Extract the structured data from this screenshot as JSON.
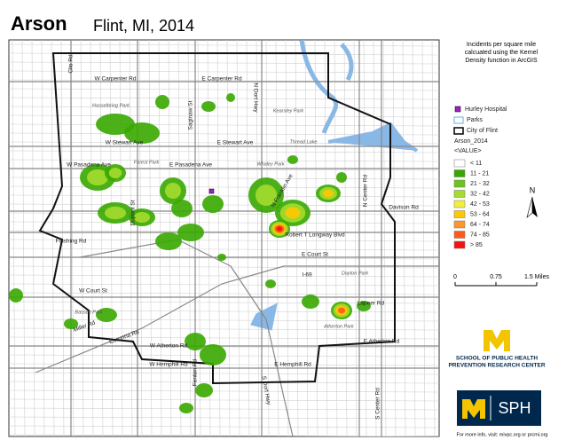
{
  "header": {
    "title": "Arson",
    "subtitle": "Flint, MI, 2014"
  },
  "note": [
    "Incidents per square mile",
    "calcuated using the Kernel",
    "Density function in ArcGIS"
  ],
  "legend": {
    "hospital": "Hurley Hospital",
    "parks": "Parks",
    "city": "City of Flint",
    "layer": "Arson_2014",
    "field": "<VALUE>",
    "classes": [
      {
        "label": "< 11",
        "color": "#ffffff"
      },
      {
        "label": "11 - 21",
        "color": "#38a800"
      },
      {
        "label": "21 - 32",
        "color": "#6bc41c"
      },
      {
        "label": "32 - 42",
        "color": "#a5dc2e"
      },
      {
        "label": "42 - 53",
        "color": "#f0f03c"
      },
      {
        "label": "53 - 64",
        "color": "#ffc800"
      },
      {
        "label": "64 - 74",
        "color": "#ff9628"
      },
      {
        "label": "74 - 85",
        "color": "#ff5a1e"
      },
      {
        "label": "> 85",
        "color": "#f01414"
      }
    ]
  },
  "north": "N",
  "scale": [
    "0",
    "0.75",
    "1.5 Miles"
  ],
  "logos": {
    "school": "SCHOOL OF PUBLIC HEALTH",
    "center": "PREVENTION RESEARCH CENTER",
    "sph": "SPH"
  },
  "footer": "For more info, visit: mivpc.org or prcmi.org",
  "streets": [
    "Clio Rd",
    "W Carpenter Rd",
    "E Carpenter Rd",
    "N Dort Hwy",
    "W Stewart Ave",
    "E Stewart Ave",
    "W Pasadena Ave",
    "E Pasadena Ave",
    "Davison Rd",
    "Robert T Longway Blvd",
    "Flushing Rd",
    "W Court St",
    "E Court St",
    "Lapeer Rd",
    "I-69",
    "E Atherton Rd",
    "W Atherton Rd",
    "W Hemphill Rd",
    "E Hemphill Rd",
    "Miller Rd",
    "Corunna Rd",
    "N Center Rd",
    "S Center Rd",
    "Dupont St",
    "Fenton Rd",
    "Saginaw St",
    "N Franklin Ave",
    "S Dort Hwy"
  ],
  "parks": [
    "Hasselbring Park",
    "Kearsley Park",
    "Forest Park",
    "Whaley Park",
    "Thread Lake",
    "Atherton Park",
    "Bassett Park",
    "Dayton Park"
  ]
}
